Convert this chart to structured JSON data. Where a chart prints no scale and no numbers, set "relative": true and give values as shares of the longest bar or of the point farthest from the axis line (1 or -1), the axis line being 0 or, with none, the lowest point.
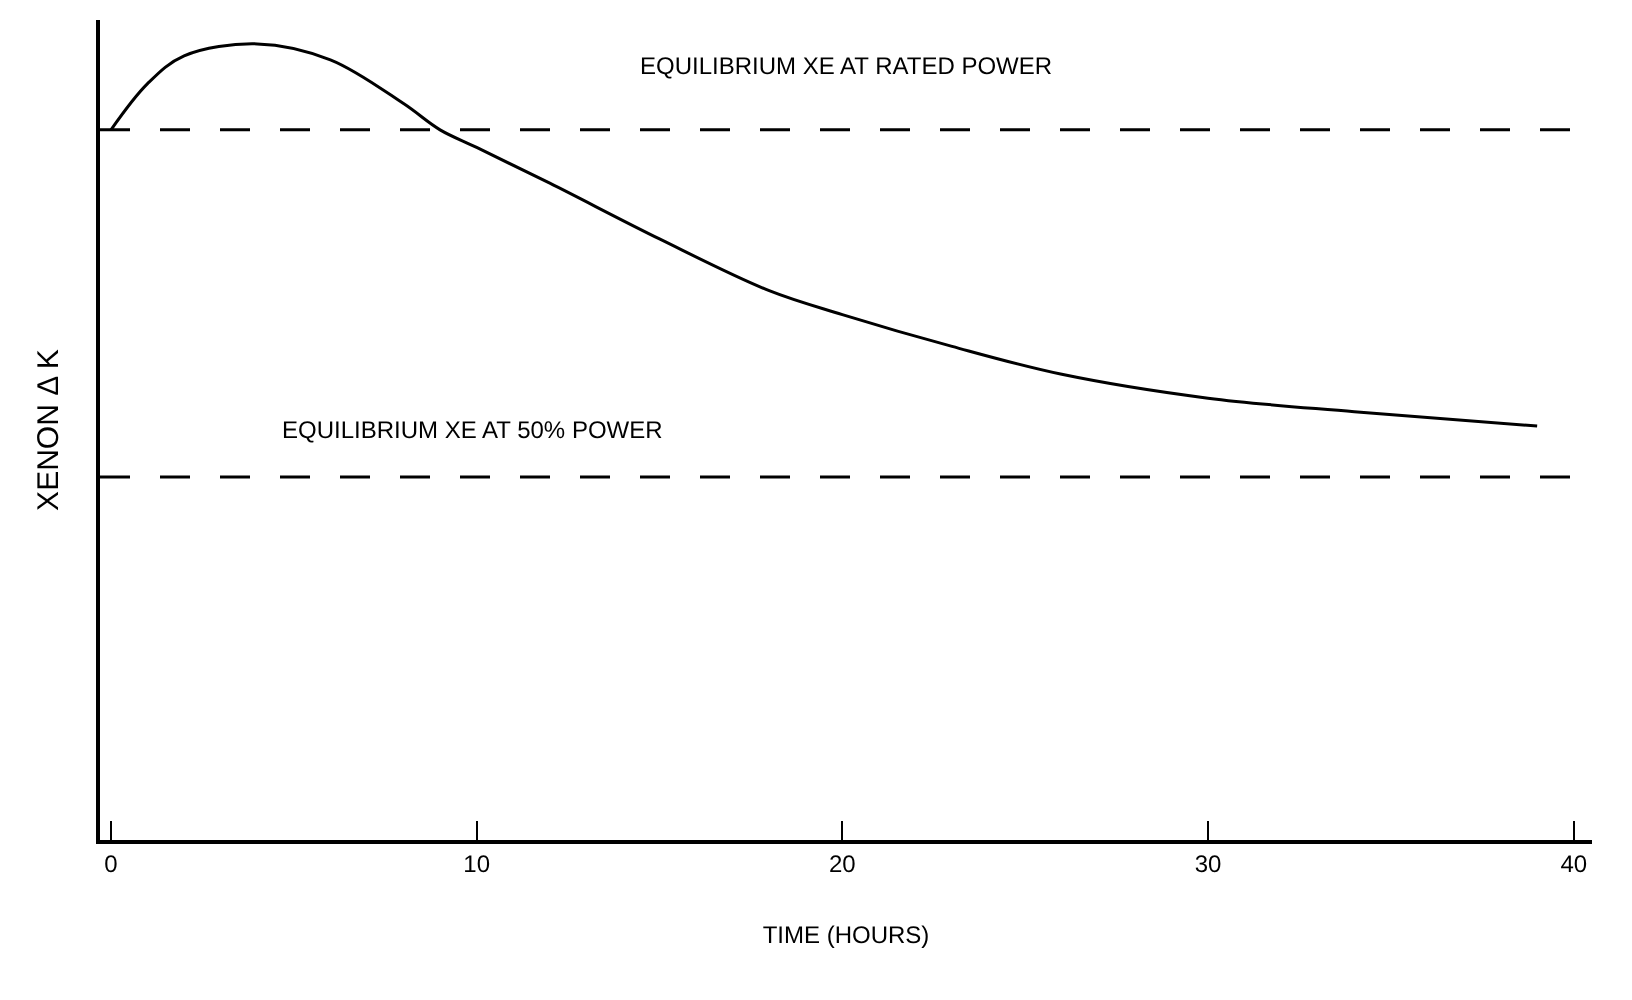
{
  "chart_data": {
    "type": "line",
    "relative": true,
    "xlabel": "TIME (HOURS)",
    "ylabel": "XENON Δ K",
    "xlim": [
      -0.3,
      40.5
    ],
    "xticks": [
      0,
      10,
      20,
      30,
      40
    ],
    "x": [
      0,
      1,
      2,
      4,
      6,
      8,
      9,
      10,
      12,
      15,
      18,
      20,
      23,
      26,
      30,
      34,
      39
    ],
    "series": [
      {
        "color": "#000000",
        "values": [
          0.892,
          0.95,
          0.985,
          1.0,
          0.98,
          0.925,
          0.892,
          0.87,
          0.825,
          0.755,
          0.69,
          0.66,
          0.62,
          0.585,
          0.555,
          0.538,
          0.52
        ]
      }
    ],
    "ref_lines": [
      {
        "axis": "y",
        "value": 0.892,
        "label": "EQUILIBRIUM XE AT RATED POWER",
        "line_style": "dashed",
        "color": "#000000"
      },
      {
        "axis": "y",
        "value": 0.456,
        "label": "EQUILIBRIUM XE AT 50% POWER",
        "line_style": "dashed",
        "color": "#000000"
      }
    ],
    "marker": "none",
    "line_style": "solid"
  }
}
